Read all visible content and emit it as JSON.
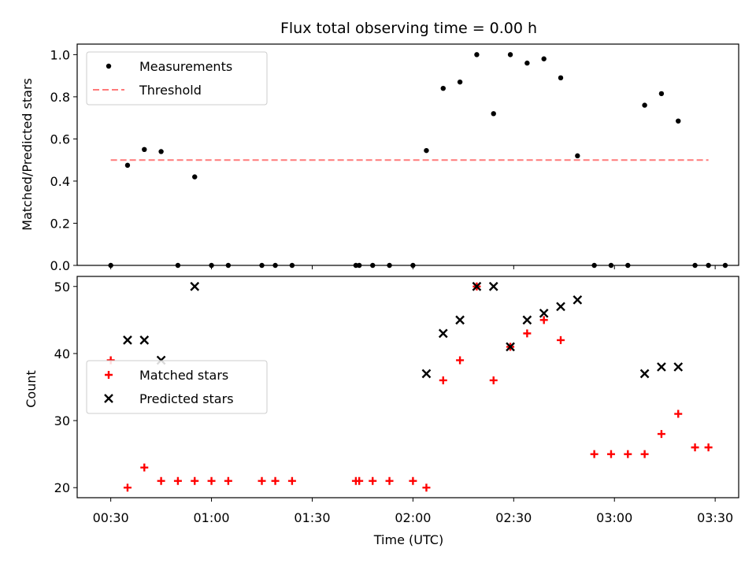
{
  "chart_data": {
    "title": "Flux total observing time = 0.00 h",
    "xlabel": "Time (UTC)",
    "x_ticks": [
      "00:30",
      "01:00",
      "01:30",
      "02:00",
      "02:30",
      "03:00",
      "03:30"
    ],
    "x_tick_minutes": [
      30,
      60,
      90,
      120,
      150,
      180,
      210
    ],
    "xlim_minutes": [
      20,
      217
    ],
    "panels": [
      {
        "type": "scatter",
        "ylabel": "Matched/Predicted stars",
        "ylim": [
          0,
          1.05
        ],
        "yticks": [
          "0.0",
          "0.2",
          "0.4",
          "0.6",
          "0.8",
          "1.0"
        ],
        "ytick_values": [
          0,
          0.2,
          0.4,
          0.6,
          0.8,
          1.0
        ],
        "legend": "upper-left",
        "series": [
          {
            "name": "Measurements",
            "marker": "dot",
            "color": "#000000",
            "x": [
              30,
              35,
              40,
              45,
              50,
              55,
              60,
              65,
              75,
              79,
              84,
              103,
              104,
              108,
              113,
              120,
              124,
              129,
              134,
              139,
              144,
              149,
              154,
              159,
              164,
              169,
              174,
              179,
              184,
              189,
              194,
              199,
              204,
              208,
              213
            ],
            "y": [
              0,
              0.475,
              0.55,
              0.54,
              0,
              0.42,
              0,
              0,
              0,
              0,
              0,
              0,
              0,
              0,
              0,
              0,
              0.545,
              0.84,
              0.87,
              1.0,
              0.72,
              1.0,
              0.96,
              0.98,
              0.89,
              0.52,
              0,
              0,
              0,
              0.76,
              0.815,
              0.685,
              0,
              0,
              0
            ]
          },
          {
            "name": "Threshold",
            "style": "dashed",
            "color": "#ff7a7a",
            "x": [
              30,
              208
            ],
            "y": [
              0.5,
              0.5
            ]
          }
        ]
      },
      {
        "type": "scatter",
        "ylabel": "Count",
        "ylim": [
          18.5,
          51.5
        ],
        "yticks": [
          "20",
          "30",
          "40",
          "50"
        ],
        "ytick_values": [
          20,
          30,
          40,
          50
        ],
        "legend": "center-left",
        "series": [
          {
            "name": "Matched stars",
            "marker": "plus",
            "color": "#ff0000",
            "x": [
              30,
              35,
              40,
              45,
              50,
              55,
              60,
              65,
              75,
              79,
              84,
              103,
              104,
              108,
              113,
              120,
              124,
              129,
              134,
              139,
              144,
              149,
              154,
              159,
              164,
              174,
              179,
              184,
              189,
              194,
              199,
              204,
              208
            ],
            "y": [
              39,
              20,
              23,
              21,
              21,
              21,
              21,
              21,
              21,
              21,
              21,
              21,
              21,
              21,
              21,
              21,
              20,
              36,
              39,
              50,
              36,
              41,
              43,
              45,
              42,
              25,
              25,
              25,
              25,
              28,
              31,
              26,
              26
            ]
          },
          {
            "name": "Predicted stars",
            "marker": "x",
            "color": "#000000",
            "x": [
              35,
              40,
              45,
              55,
              124,
              129,
              134,
              139,
              144,
              149,
              154,
              159,
              164,
              169,
              189,
              194,
              199
            ],
            "y": [
              42,
              42,
              39,
              50,
              37,
              43,
              45,
              50,
              50,
              41,
              45,
              46,
              47,
              48,
              37,
              38,
              38
            ]
          }
        ]
      }
    ]
  }
}
